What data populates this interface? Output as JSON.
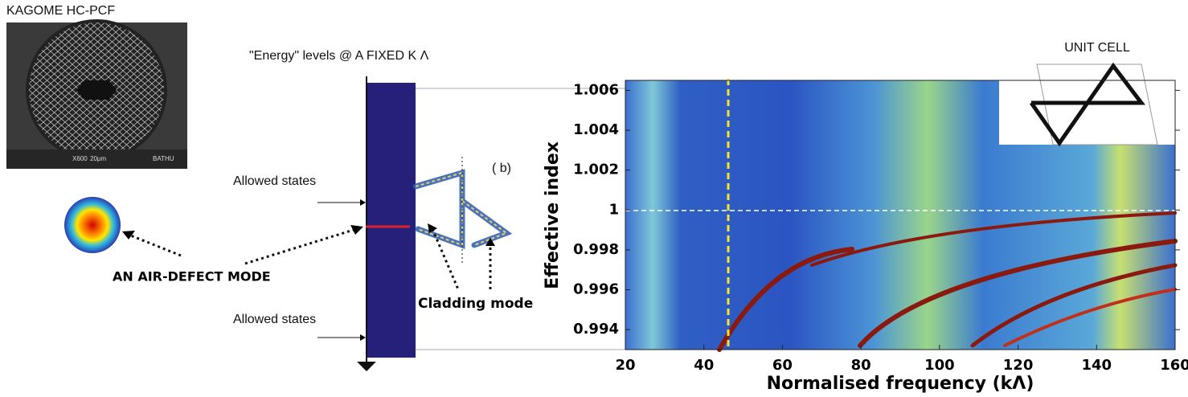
{
  "sem_image": {
    "title": "KAGOME  HC-PCF",
    "magnification": "X600",
    "scale": "20μm",
    "credit": "BATHU"
  },
  "energy_diagram": {
    "title": "\"Energy\" levels @ A FIXED K Λ",
    "upper_label": "Allowed states",
    "lower_label": "Allowed states",
    "defect_label": "AN AIR-DEFECT MODE",
    "panel_label": "( b)",
    "cladding_label": "Cladding mode"
  },
  "plot": {
    "inset_title": "UNIT CELL",
    "ylabel": "Effective index",
    "xlabel": "Normalised frequency (kΛ)",
    "xlim": [
      20,
      160
    ],
    "xticks": [
      20,
      40,
      60,
      80,
      100,
      120,
      140,
      160
    ],
    "ylim": [
      0.993,
      1.0065
    ],
    "yticks": [
      0.994,
      0.996,
      0.998,
      1,
      1.002,
      1.004,
      1.006
    ]
  }
}
